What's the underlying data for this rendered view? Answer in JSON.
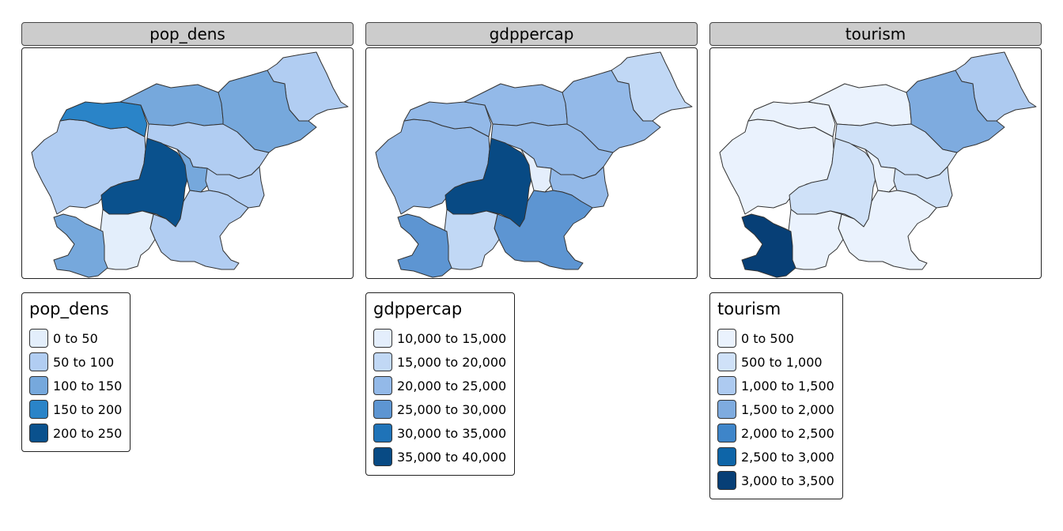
{
  "panels": [
    {
      "title": "pop_dens",
      "legend": {
        "title": "pop_dens",
        "items": [
          {
            "label": "0 to 50",
            "color": "#e3eefb"
          },
          {
            "label": "50 to 100",
            "color": "#b1cdf2"
          },
          {
            "label": "100 to 150",
            "color": "#76a8dc"
          },
          {
            "label": "150 to 200",
            "color": "#2a84c8"
          },
          {
            "label": "200 to 250",
            "color": "#0a518d"
          }
        ]
      },
      "region_classes": [
        1,
        1,
        3,
        2,
        1,
        2,
        4,
        2,
        1,
        1,
        0,
        2
      ]
    },
    {
      "title": "gdppercap",
      "legend": {
        "title": "gdppercap",
        "items": [
          {
            "label": "10,000 to 15,000",
            "color": "#e4eefc"
          },
          {
            "label": "15,000 to 20,000",
            "color": "#c1d8f5"
          },
          {
            "label": "20,000 to 25,000",
            "color": "#93b9e8"
          },
          {
            "label": "25,000 to 30,000",
            "color": "#5d95d2"
          },
          {
            "label": "30,000 to 35,000",
            "color": "#1f73b8"
          },
          {
            "label": "35,000 to 40,000",
            "color": "#084a84"
          }
        ]
      },
      "region_classes": [
        1,
        2,
        2,
        2,
        2,
        2,
        5,
        0,
        2,
        3,
        1,
        3
      ]
    },
    {
      "title": "tourism",
      "legend": {
        "title": "tourism",
        "items": [
          {
            "label": "0 to 500",
            "color": "#eaf2fd"
          },
          {
            "label": "500 to 1,000",
            "color": "#cfe1f8"
          },
          {
            "label": "1,000 to 1,500",
            "color": "#adcaf0"
          },
          {
            "label": "1,500 to 2,000",
            "color": "#7eabdf"
          },
          {
            "label": "2,000 to 2,500",
            "color": "#3e85c9"
          },
          {
            "label": "2,500 to 3,000",
            "color": "#0e65a8"
          },
          {
            "label": "3,000 to 3,500",
            "color": "#073f76"
          }
        ]
      },
      "region_classes": [
        2,
        0,
        0,
        0,
        1,
        3,
        1,
        0,
        1,
        0,
        0,
        6
      ]
    }
  ],
  "map_colors": {
    "border": "#333333"
  }
}
